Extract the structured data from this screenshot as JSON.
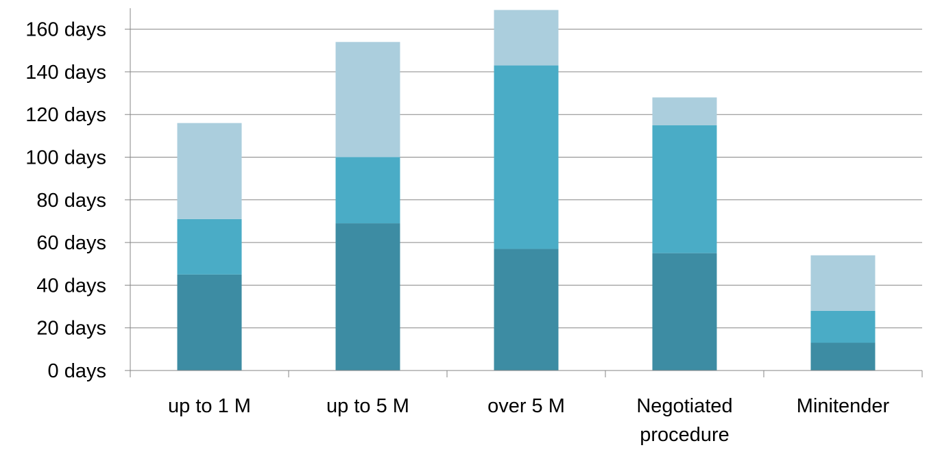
{
  "chart_data": {
    "type": "bar",
    "stacked": true,
    "title": "",
    "xlabel": "",
    "ylabel": "",
    "categories": [
      "up to 1 M",
      "up to 5 M",
      "over 5 M",
      "Negotiated procedure",
      "Minitender"
    ],
    "category_lines": [
      [
        "up to 1 M"
      ],
      [
        "up to 5 M"
      ],
      [
        "over 5 M"
      ],
      [
        "Negotiated",
        "procedure"
      ],
      [
        "Minitender"
      ]
    ],
    "series": [
      {
        "color": "#3d8ca3",
        "values": [
          45,
          69,
          57,
          55,
          13
        ]
      },
      {
        "color": "#4aacc6",
        "values": [
          26,
          31,
          86,
          60,
          15
        ]
      },
      {
        "color": "#abcedd",
        "values": [
          45,
          54,
          26,
          13,
          26
        ]
      }
    ],
    "ylim": [
      0,
      170
    ],
    "yticks": [
      0,
      20,
      40,
      60,
      80,
      100,
      120,
      140,
      160
    ],
    "ytick_labels": [
      "0 days",
      "20 days",
      "40 days",
      "60 days",
      "80 days",
      "100 days",
      "120 days",
      "140 days",
      "160 days"
    ],
    "grid": true,
    "legend": "none"
  }
}
